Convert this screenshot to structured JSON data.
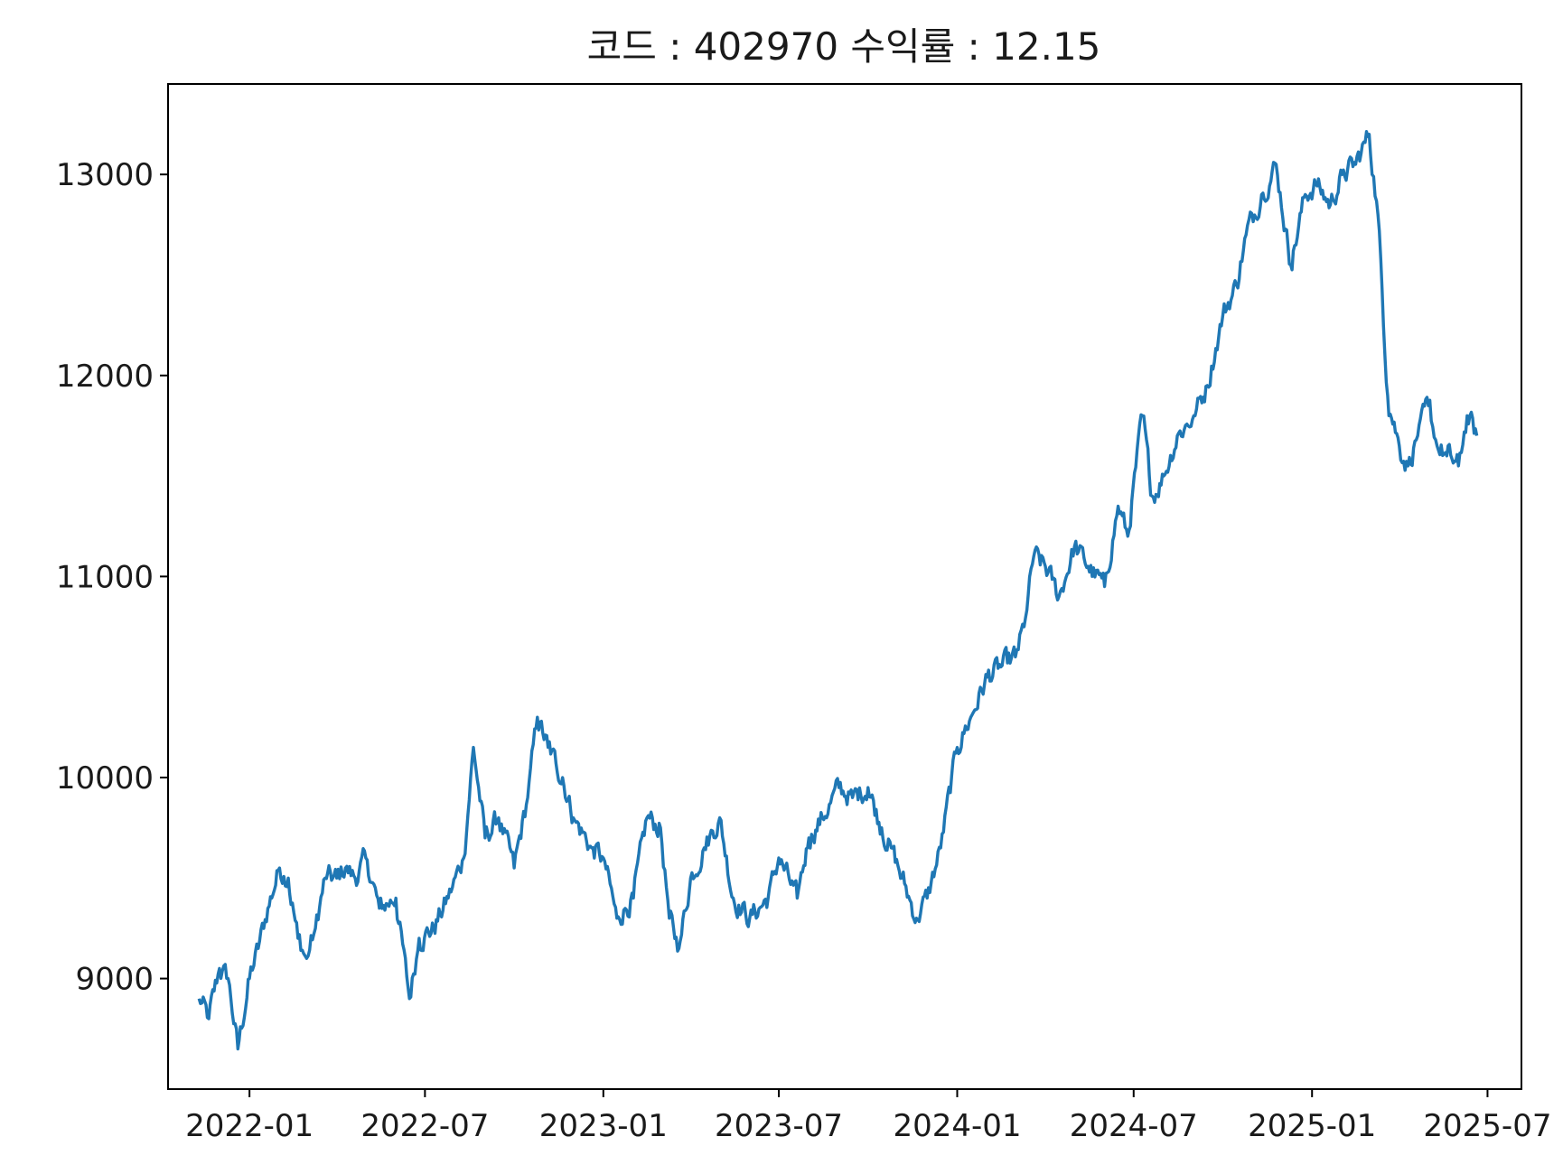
{
  "chart_data": {
    "type": "line",
    "title": "코드 : 402970 수익률 : 12.15",
    "xlabel": "",
    "ylabel": "",
    "x_ticks": [
      "2022-01",
      "2022-07",
      "2023-01",
      "2023-07",
      "2024-01",
      "2024-07",
      "2025-01",
      "2025-07"
    ],
    "y_ticks": [
      9000,
      10000,
      11000,
      12000,
      13000
    ],
    "xlim": [
      "2021-10-09",
      "2025-08-05"
    ],
    "ylim": [
      8450,
      13450
    ],
    "grid": false,
    "legend": "none",
    "series_color": "#1f77b4",
    "series": [
      {
        "x": [
          "2021-11-10",
          "2021-11-20",
          "2021-12-01",
          "2021-12-10",
          "2021-12-20",
          "2022-01-01",
          "2022-01-10",
          "2022-01-20",
          "2022-02-01",
          "2022-02-10",
          "2022-02-20",
          "2022-03-01",
          "2022-03-10",
          "2022-03-20",
          "2022-04-01",
          "2022-04-10",
          "2022-04-20",
          "2022-05-01",
          "2022-05-15",
          "2022-06-01",
          "2022-06-15",
          "2022-06-25",
          "2022-07-10",
          "2022-07-25",
          "2022-08-10",
          "2022-08-20",
          "2022-09-01",
          "2022-09-15",
          "2022-10-01",
          "2022-10-15",
          "2022-10-25",
          "2022-11-05",
          "2022-11-20",
          "2022-12-01",
          "2022-12-20",
          "2023-01-01",
          "2023-01-15",
          "2023-02-01",
          "2023-02-15",
          "2023-03-01",
          "2023-03-10",
          "2023-03-20",
          "2023-04-01",
          "2023-04-15",
          "2023-05-01",
          "2023-05-15",
          "2023-06-01",
          "2023-06-20",
          "2023-07-01",
          "2023-07-20",
          "2023-08-01",
          "2023-08-15",
          "2023-09-01",
          "2023-09-15",
          "2023-10-01",
          "2023-10-15",
          "2023-10-25",
          "2023-11-05",
          "2023-11-20",
          "2023-12-01",
          "2023-12-15",
          "2024-01-01",
          "2024-01-15",
          "2024-02-01",
          "2024-02-15",
          "2024-03-01",
          "2024-03-10",
          "2024-03-20",
          "2024-04-01",
          "2024-04-15",
          "2024-05-01",
          "2024-05-15",
          "2024-06-01",
          "2024-06-15",
          "2024-06-25",
          "2024-07-10",
          "2024-07-20",
          "2024-08-01",
          "2024-08-15",
          "2024-09-01",
          "2024-09-15",
          "2024-10-01",
          "2024-10-15",
          "2024-10-25",
          "2024-11-10",
          "2024-11-25",
          "2024-12-10",
          "2024-12-25",
          "2025-01-05",
          "2025-01-20",
          "2025-02-01",
          "2025-02-15",
          "2025-03-01",
          "2025-03-10",
          "2025-03-20",
          "2025-04-01",
          "2025-04-10",
          "2025-04-20",
          "2025-05-01",
          "2025-05-10",
          "2025-05-20",
          "2025-06-01",
          "2025-06-10",
          "2025-06-20"
        ],
        "values": [
          8900,
          8800,
          9050,
          9000,
          8650,
          9000,
          9150,
          9350,
          9550,
          9500,
          9200,
          9100,
          9250,
          9500,
          9500,
          9550,
          9500,
          9600,
          9350,
          9400,
          8900,
          9200,
          9250,
          9400,
          9600,
          10150,
          9700,
          9800,
          9550,
          9900,
          10300,
          10150,
          10000,
          9800,
          9650,
          9600,
          9300,
          9400,
          9800,
          9750,
          9300,
          9150,
          9500,
          9650,
          9800,
          9400,
          9300,
          9400,
          9600,
          9400,
          9700,
          9800,
          9950,
          9900,
          9950,
          9750,
          9650,
          9500,
          9300,
          9400,
          9650,
          10150,
          10300,
          10500,
          10550,
          10600,
          10750,
          11100,
          11050,
          10900,
          11150,
          11050,
          10950,
          11350,
          11200,
          11800,
          11400,
          11500,
          11700,
          11800,
          11950,
          12300,
          12450,
          12700,
          12900,
          13050,
          12550,
          12900,
          12950,
          12850,
          13000,
          13050,
          13200,
          12800,
          11900,
          11650,
          11550,
          11700,
          11850,
          11650,
          11600,
          11550,
          11800,
          11700
        ]
      }
    ]
  }
}
